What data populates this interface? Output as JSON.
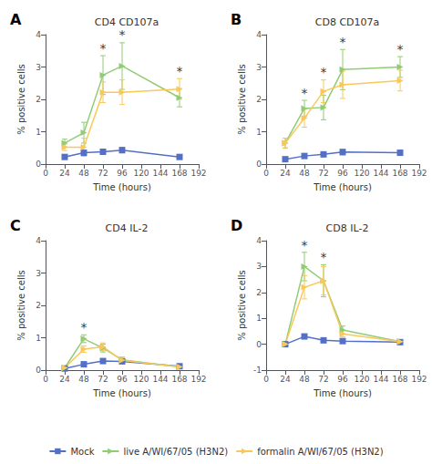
{
  "chart_data": [
    {
      "type": "line",
      "panel_label": "A",
      "title": "CD4 CD107a",
      "xlabel": "Time (hours)",
      "ylabel": "% positive cells",
      "x": [
        24,
        48,
        72,
        96,
        168
      ],
      "xlim": [
        0,
        192
      ],
      "xticks": [
        0,
        24,
        48,
        72,
        96,
        120,
        144,
        168,
        192
      ],
      "ylim": [
        0,
        4
      ],
      "yticks": [
        0,
        1,
        2,
        3,
        4
      ],
      "grid": false,
      "legend": "bottom",
      "series": [
        {
          "name": "Mock",
          "marker": "square",
          "values": [
            0.22,
            0.35,
            0.38,
            0.43,
            0.22
          ],
          "yerr": [
            0.05,
            0.07,
            0.07,
            0.08,
            0.04
          ]
        },
        {
          "name": "live A/WI/67/05 (H3N2)",
          "marker": "triangle_right",
          "values": [
            0.65,
            0.97,
            2.75,
            3.03,
            2.05
          ],
          "yerr": [
            0.12,
            0.32,
            0.6,
            0.72,
            0.28
          ]
        },
        {
          "name": "formalin A/WI/67/05 (H3N2)",
          "marker": "triangle_right",
          "values": [
            0.52,
            0.52,
            2.22,
            2.22,
            2.32
          ],
          "yerr": [
            0.1,
            0.28,
            0.32,
            0.38,
            0.32
          ]
        }
      ],
      "annotations": [
        {
          "x": 72,
          "y": 3.39,
          "text": "*"
        },
        {
          "x": 96,
          "y": 3.79,
          "text": "*"
        },
        {
          "x": 168,
          "y": 2.68,
          "text": "*"
        }
      ]
    },
    {
      "type": "line",
      "panel_label": "B",
      "title": "CD8 CD107a",
      "xlabel": "Time (hours)",
      "ylabel": "% positive cells",
      "x": [
        24,
        48,
        72,
        96,
        168
      ],
      "xlim": [
        0,
        192
      ],
      "xticks": [
        0,
        24,
        48,
        72,
        96,
        120,
        144,
        168,
        192
      ],
      "ylim": [
        0,
        4
      ],
      "yticks": [
        0,
        1,
        2,
        3,
        4
      ],
      "grid": false,
      "legend": "bottom",
      "series": [
        {
          "name": "Mock",
          "marker": "square",
          "values": [
            0.15,
            0.25,
            0.3,
            0.37,
            0.35
          ],
          "yerr": [
            0.04,
            0.05,
            0.06,
            0.08,
            0.07
          ]
        },
        {
          "name": "live A/WI/67/05 (H3N2)",
          "marker": "triangle_right",
          "values": [
            0.65,
            1.72,
            1.75,
            2.92,
            3.0
          ],
          "yerr": [
            0.15,
            0.25,
            0.38,
            0.62,
            0.32
          ]
        },
        {
          "name": "formalin A/WI/67/05 (H3N2)",
          "marker": "triangle_right",
          "values": [
            0.65,
            1.42,
            2.25,
            2.45,
            2.58
          ],
          "yerr": [
            0.15,
            0.28,
            0.35,
            0.42,
            0.32
          ]
        }
      ],
      "annotations": [
        {
          "x": 48,
          "y": 2.01,
          "text": "*"
        },
        {
          "x": 72,
          "y": 2.64,
          "text": "*"
        },
        {
          "x": 96,
          "y": 3.58,
          "text": "*"
        },
        {
          "x": 168,
          "y": 3.36,
          "text": "*"
        }
      ]
    },
    {
      "type": "line",
      "panel_label": "C",
      "title": "CD4 IL-2",
      "xlabel": "Time (hours)",
      "ylabel": "% positive cells",
      "x": [
        24,
        48,
        72,
        96,
        168
      ],
      "xlim": [
        0,
        192
      ],
      "xticks": [
        0,
        24,
        48,
        72,
        96,
        120,
        144,
        168,
        192
      ],
      "ylim": [
        0,
        4
      ],
      "yticks": [
        0,
        1,
        2,
        3,
        4
      ],
      "grid": false,
      "legend": "bottom",
      "series": [
        {
          "name": "Mock",
          "marker": "square",
          "values": [
            0.05,
            0.18,
            0.28,
            0.27,
            0.12
          ],
          "yerr": [
            0.02,
            0.05,
            0.06,
            0.06,
            0.03
          ]
        },
        {
          "name": "live A/WI/67/05 (H3N2)",
          "marker": "triangle_right",
          "values": [
            0.07,
            0.97,
            0.68,
            0.32,
            0.1
          ],
          "yerr": [
            0.02,
            0.12,
            0.12,
            0.08,
            0.03
          ]
        },
        {
          "name": "formalin A/WI/67/05 (H3N2)",
          "marker": "triangle_right",
          "values": [
            0.07,
            0.65,
            0.72,
            0.3,
            0.1
          ],
          "yerr": [
            0.02,
            0.1,
            0.12,
            0.07,
            0.03
          ]
        }
      ],
      "annotations": [
        {
          "x": 48,
          "y": 1.13,
          "text": "*"
        }
      ]
    },
    {
      "type": "line",
      "panel_label": "D",
      "title": "CD8 IL-2",
      "xlabel": "Time (hours)",
      "ylabel": "% positive cells",
      "x": [
        24,
        48,
        72,
        96,
        168
      ],
      "xlim": [
        0,
        192
      ],
      "xticks": [
        0,
        24,
        48,
        72,
        96,
        120,
        144,
        168,
        192
      ],
      "ylim": [
        -1,
        4
      ],
      "yticks": [
        -1,
        0,
        1,
        2,
        3,
        4
      ],
      "grid": false,
      "legend": "bottom",
      "series": [
        {
          "name": "Mock",
          "marker": "square",
          "values": [
            0.0,
            0.3,
            0.15,
            0.12,
            0.08
          ],
          "yerr": [
            0.01,
            0.07,
            0.04,
            0.03,
            0.02
          ]
        },
        {
          "name": "live A/WI/67/05 (H3N2)",
          "marker": "triangle_right",
          "values": [
            0.0,
            3.0,
            2.45,
            0.55,
            0.1
          ],
          "yerr": [
            0.01,
            0.55,
            0.62,
            0.15,
            0.03
          ]
        },
        {
          "name": "formalin A/WI/67/05 (H3N2)",
          "marker": "triangle_right",
          "values": [
            0.0,
            2.2,
            2.45,
            0.4,
            0.1
          ],
          "yerr": [
            0.01,
            0.45,
            0.55,
            0.12,
            0.03
          ]
        }
      ],
      "annotations": [
        {
          "x": 48,
          "y": 3.59,
          "text": "*"
        },
        {
          "x": 72,
          "y": 3.11,
          "text": "*"
        }
      ]
    }
  ]
}
